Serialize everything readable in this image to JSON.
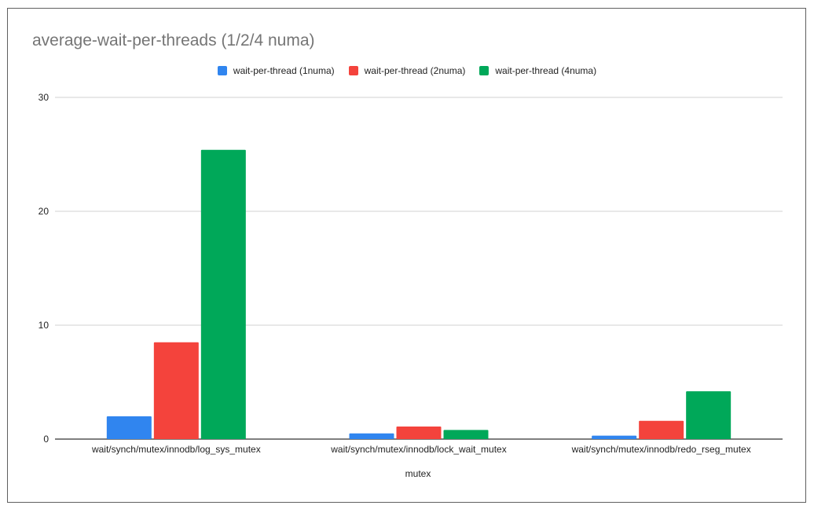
{
  "chart_data": {
    "type": "bar",
    "title": "average-wait-per-threads (1/2/4 numa)",
    "xlabel": "mutex",
    "ylabel": "",
    "categories": [
      "wait/synch/mutex/innodb/log_sys_mutex",
      "wait/synch/mutex/innodb/lock_wait_mutex",
      "wait/synch/mutex/innodb/redo_rseg_mutex"
    ],
    "series": [
      {
        "name": "wait-per-thread (1numa)",
        "color": "#3085ef",
        "values": [
          2.0,
          0.5,
          0.3
        ]
      },
      {
        "name": "wait-per-thread (2numa)",
        "color": "#f4433c",
        "values": [
          8.5,
          1.1,
          1.6
        ]
      },
      {
        "name": "wait-per-thread (4numa)",
        "color": "#00a859",
        "values": [
          25.4,
          0.8,
          4.2
        ]
      }
    ],
    "ylim": [
      0,
      30
    ],
    "yticks": [
      "0",
      "10",
      "20",
      "30"
    ],
    "grid": true,
    "legend_position": "top"
  }
}
